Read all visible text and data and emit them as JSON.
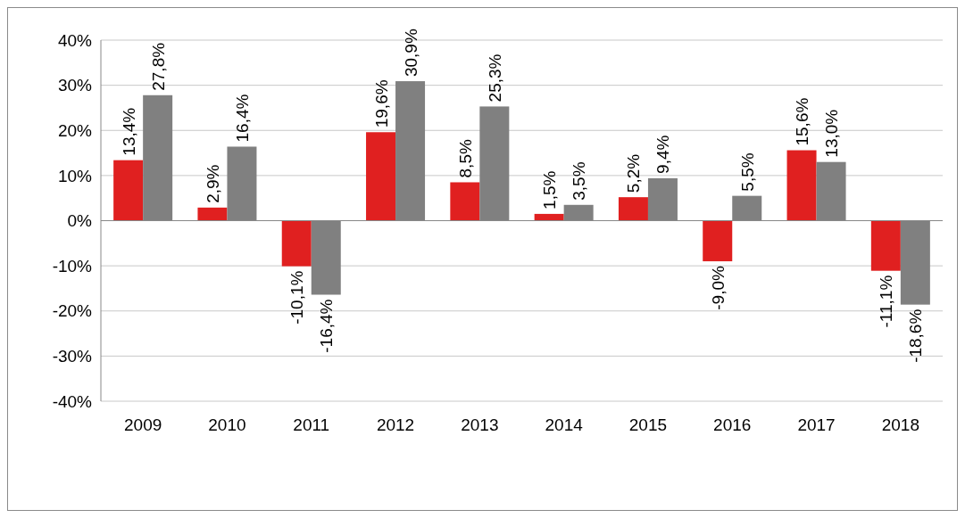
{
  "chart_data": {
    "type": "bar",
    "categories": [
      "2009",
      "2010",
      "2011",
      "2012",
      "2013",
      "2014",
      "2015",
      "2016",
      "2017",
      "2018"
    ],
    "series": [
      {
        "color": "#e02020",
        "values": [
          13.4,
          2.9,
          -10.1,
          19.6,
          8.5,
          1.5,
          5.2,
          -9.0,
          15.6,
          -11.1
        ],
        "value_labels": [
          "13,4%",
          "2,9%",
          "-10,1%",
          "19,6%",
          "8,5%",
          "1,5%",
          "5,2%",
          "-9,0%",
          "15,6%",
          "-11,1%"
        ]
      },
      {
        "color": "#808080",
        "values": [
          27.8,
          16.4,
          -16.4,
          30.9,
          25.3,
          3.5,
          9.4,
          5.5,
          13.0,
          -18.6
        ],
        "value_labels": [
          "27,8%",
          "16,4%",
          "-16,4%",
          "30,9%",
          "25,3%",
          "3,5%",
          "9,4%",
          "5,5%",
          "13,0%",
          "-18,6%"
        ]
      }
    ],
    "ylim": [
      -40,
      40
    ],
    "yticks": [
      {
        "value": -40,
        "label": "-40%"
      },
      {
        "value": -30,
        "label": "-30%"
      },
      {
        "value": -20,
        "label": "-20%"
      },
      {
        "value": -10,
        "label": "-10%"
      },
      {
        "value": 0,
        "label": "0%"
      },
      {
        "value": 10,
        "label": "10%"
      },
      {
        "value": 20,
        "label": "20%"
      },
      {
        "value": 30,
        "label": "30%"
      },
      {
        "value": 40,
        "label": "40%"
      }
    ],
    "grid": "y"
  }
}
